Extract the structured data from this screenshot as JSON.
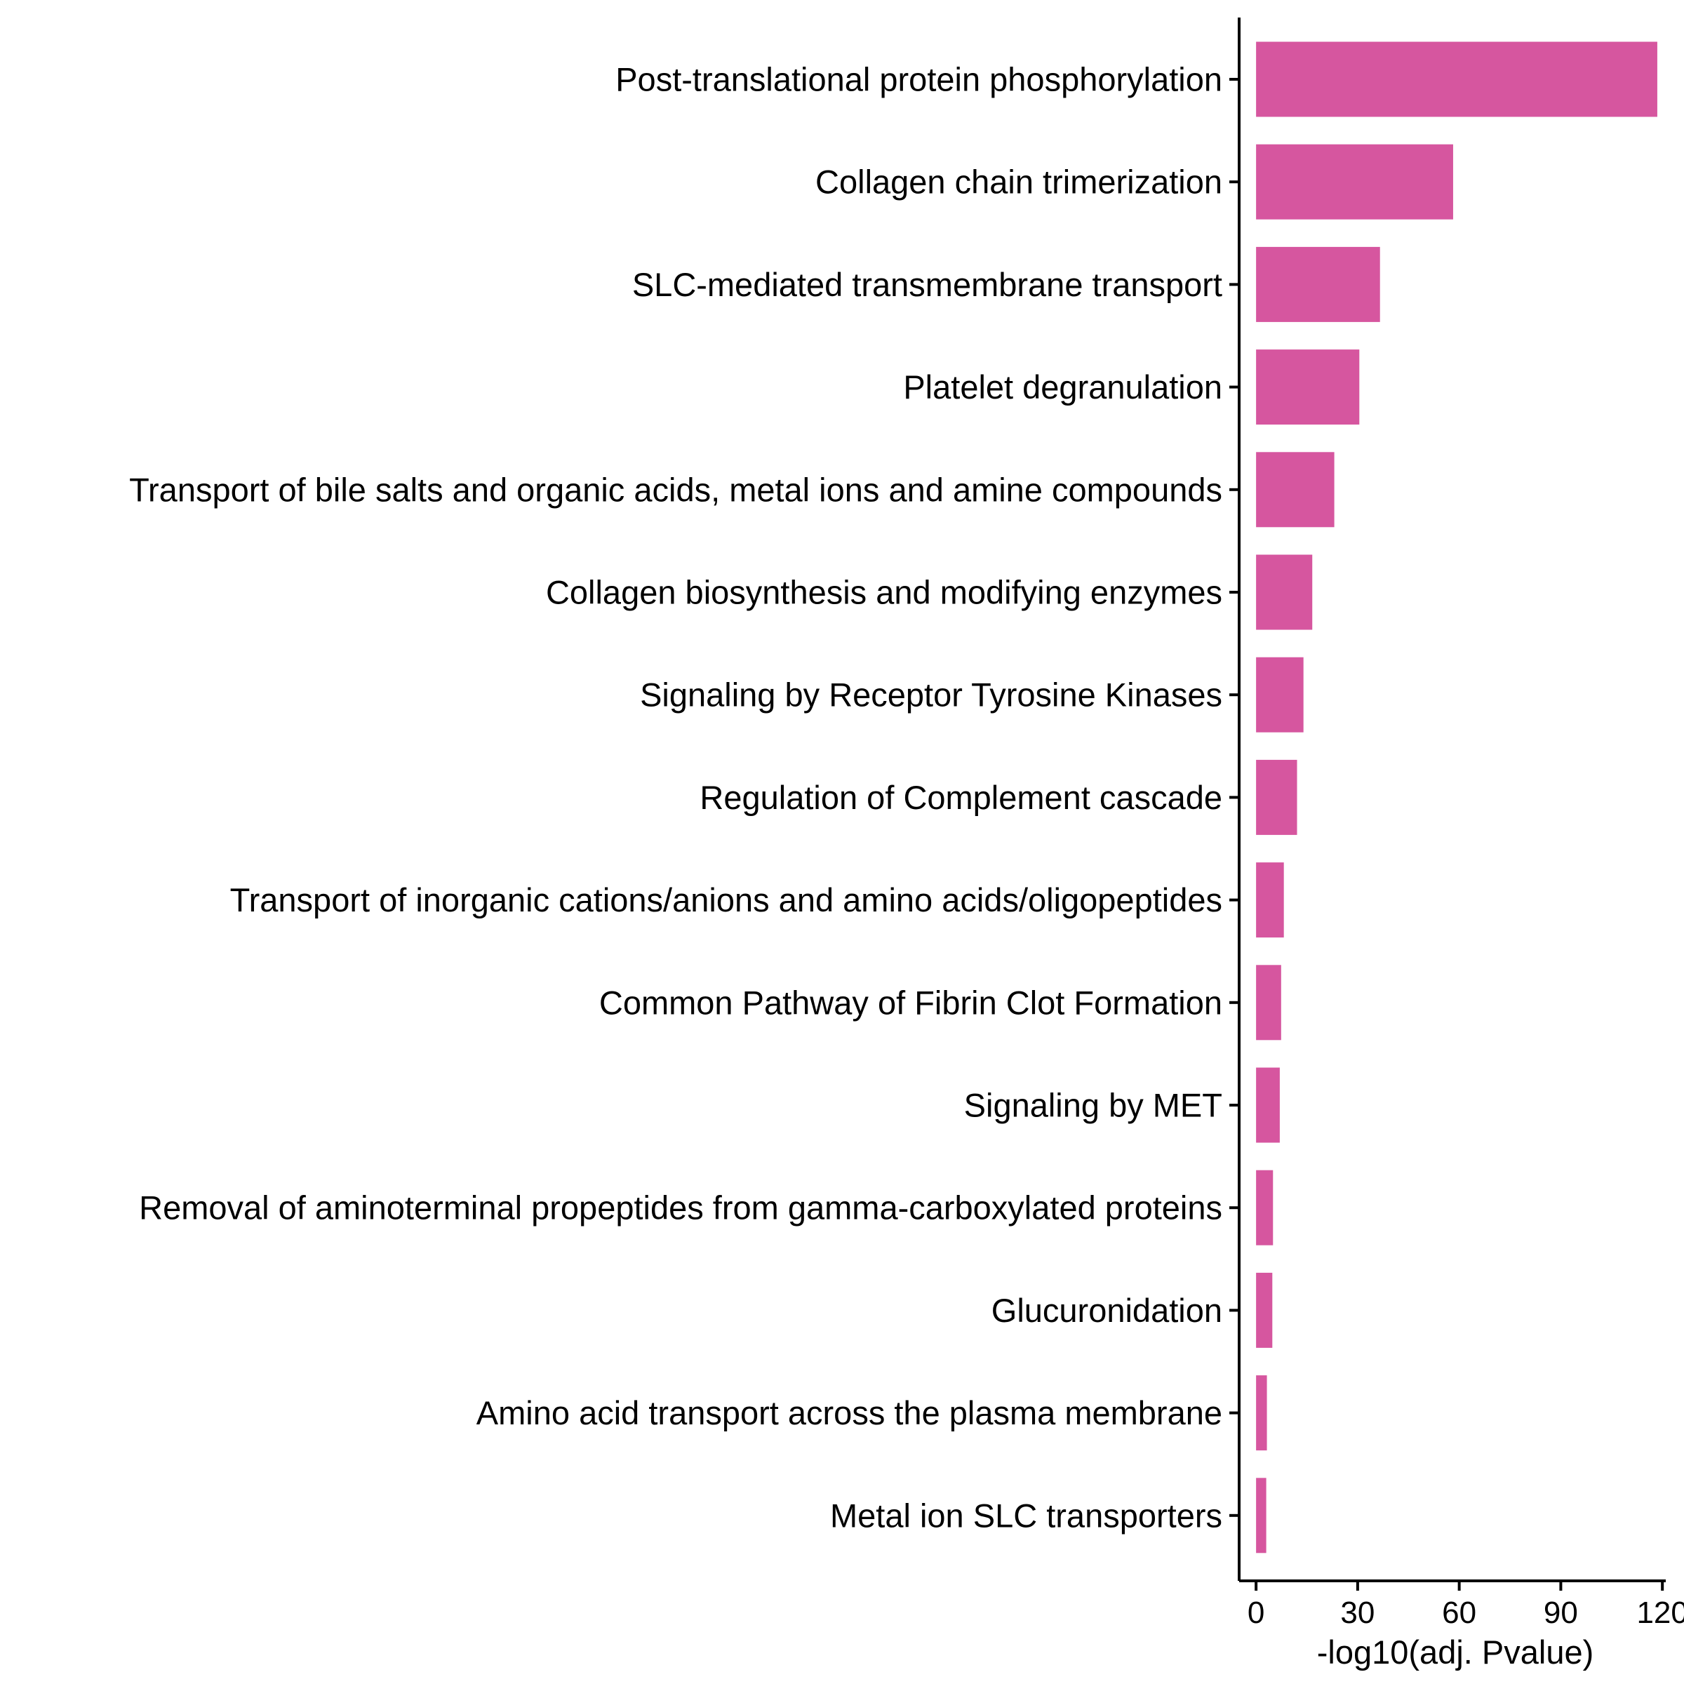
{
  "chart_data": {
    "type": "bar",
    "orientation": "horizontal",
    "categories": [
      "Post-translational protein phosphorylation",
      "Collagen chain trimerization",
      "SLC-mediated transmembrane transport",
      "Platelet degranulation",
      "Transport of bile salts and organic acids, metal ions and amine compounds",
      "Collagen biosynthesis and modifying enzymes",
      "Signaling by Receptor Tyrosine Kinases",
      "Regulation of Complement cascade",
      "Transport of inorganic cations/anions and amino acids/oligopeptides",
      "Common Pathway of Fibrin Clot Formation",
      "Signaling by MET",
      "Removal of aminoterminal propeptides from gamma-carboxylated proteins",
      "Glucuronidation",
      "Amino acid transport across the plasma membrane",
      "Metal ion SLC transporters"
    ],
    "values": [
      118.5,
      58.2,
      36.6,
      30.5,
      23.1,
      16.6,
      14.0,
      12.1,
      8.2,
      7.4,
      7.0,
      5.0,
      4.8,
      3.2,
      3.0
    ],
    "xlabel": "-log10(adj. Pvalue)",
    "ylabel": "",
    "title": "",
    "xlim": [
      -5,
      121
    ],
    "xticks": [
      0,
      30,
      60,
      90,
      120
    ],
    "grid": false,
    "bar_color": "#d6569f"
  }
}
